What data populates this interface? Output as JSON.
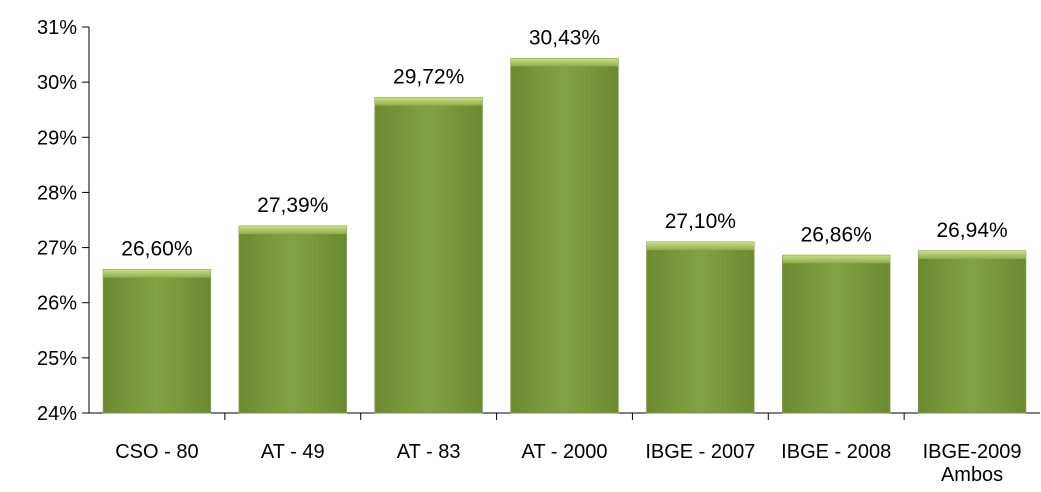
{
  "chart_data": {
    "type": "bar",
    "categories": [
      "CSO - 80",
      "AT - 49",
      "AT - 83",
      "AT - 2000",
      "IBGE - 2007",
      "IBGE - 2008",
      "IBGE-2009\nAmbos"
    ],
    "values": [
      26.6,
      27.39,
      29.72,
      30.43,
      27.1,
      26.86,
      26.94
    ],
    "value_labels": [
      "26,60%",
      "27,39%",
      "29,72%",
      "30,43%",
      "27,10%",
      "26,86%",
      "26,94%"
    ],
    "color": "#7a9a3c",
    "ylim": [
      24,
      31
    ],
    "yticks": [
      {
        "value": 24,
        "label": "24%"
      },
      {
        "value": 25,
        "label": "25%"
      },
      {
        "value": 26,
        "label": "26%"
      },
      {
        "value": 27,
        "label": "27%"
      },
      {
        "value": 28,
        "label": "28%"
      },
      {
        "value": 29,
        "label": "29%"
      },
      {
        "value": 30,
        "label": "30%"
      },
      {
        "value": 31,
        "label": "31%"
      }
    ],
    "grid": false
  }
}
